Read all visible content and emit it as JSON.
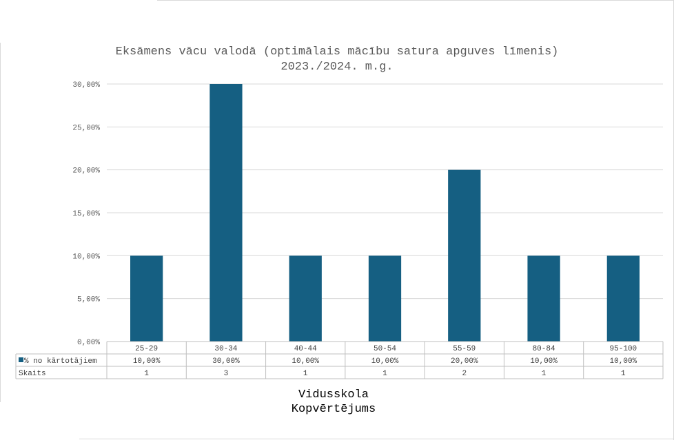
{
  "chart_data": {
    "type": "bar",
    "title_lines": [
      "Eksāmens vācu valodā (optimālais mācību satura apguves līmenis)",
      "2023./2024. m.g."
    ],
    "categories": [
      "25-29",
      "30-34",
      "40-44",
      "50-54",
      "55-59",
      "80-84",
      "95-100"
    ],
    "series": [
      {
        "name": "% no kārtotājiem",
        "values": [
          10,
          30,
          10,
          10,
          20,
          10,
          10
        ],
        "labels": [
          "10,00%",
          "30,00%",
          "10,00%",
          "10,00%",
          "20,00%",
          "10,00%",
          "10,00%"
        ],
        "color": "#155f82"
      }
    ],
    "table_rows": [
      {
        "name": "Skaits",
        "values": [
          "1",
          "3",
          "1",
          "1",
          "2",
          "1",
          "1"
        ]
      }
    ],
    "ylim": [
      0,
      30
    ],
    "yticks": [
      "0,00%",
      "5,00%",
      "10,00%",
      "15,00%",
      "20,00%",
      "25,00%",
      "30,00%"
    ],
    "grid": true,
    "xlabel_lines": [
      "Vidusskola",
      "Kopvērtējums"
    ]
  }
}
